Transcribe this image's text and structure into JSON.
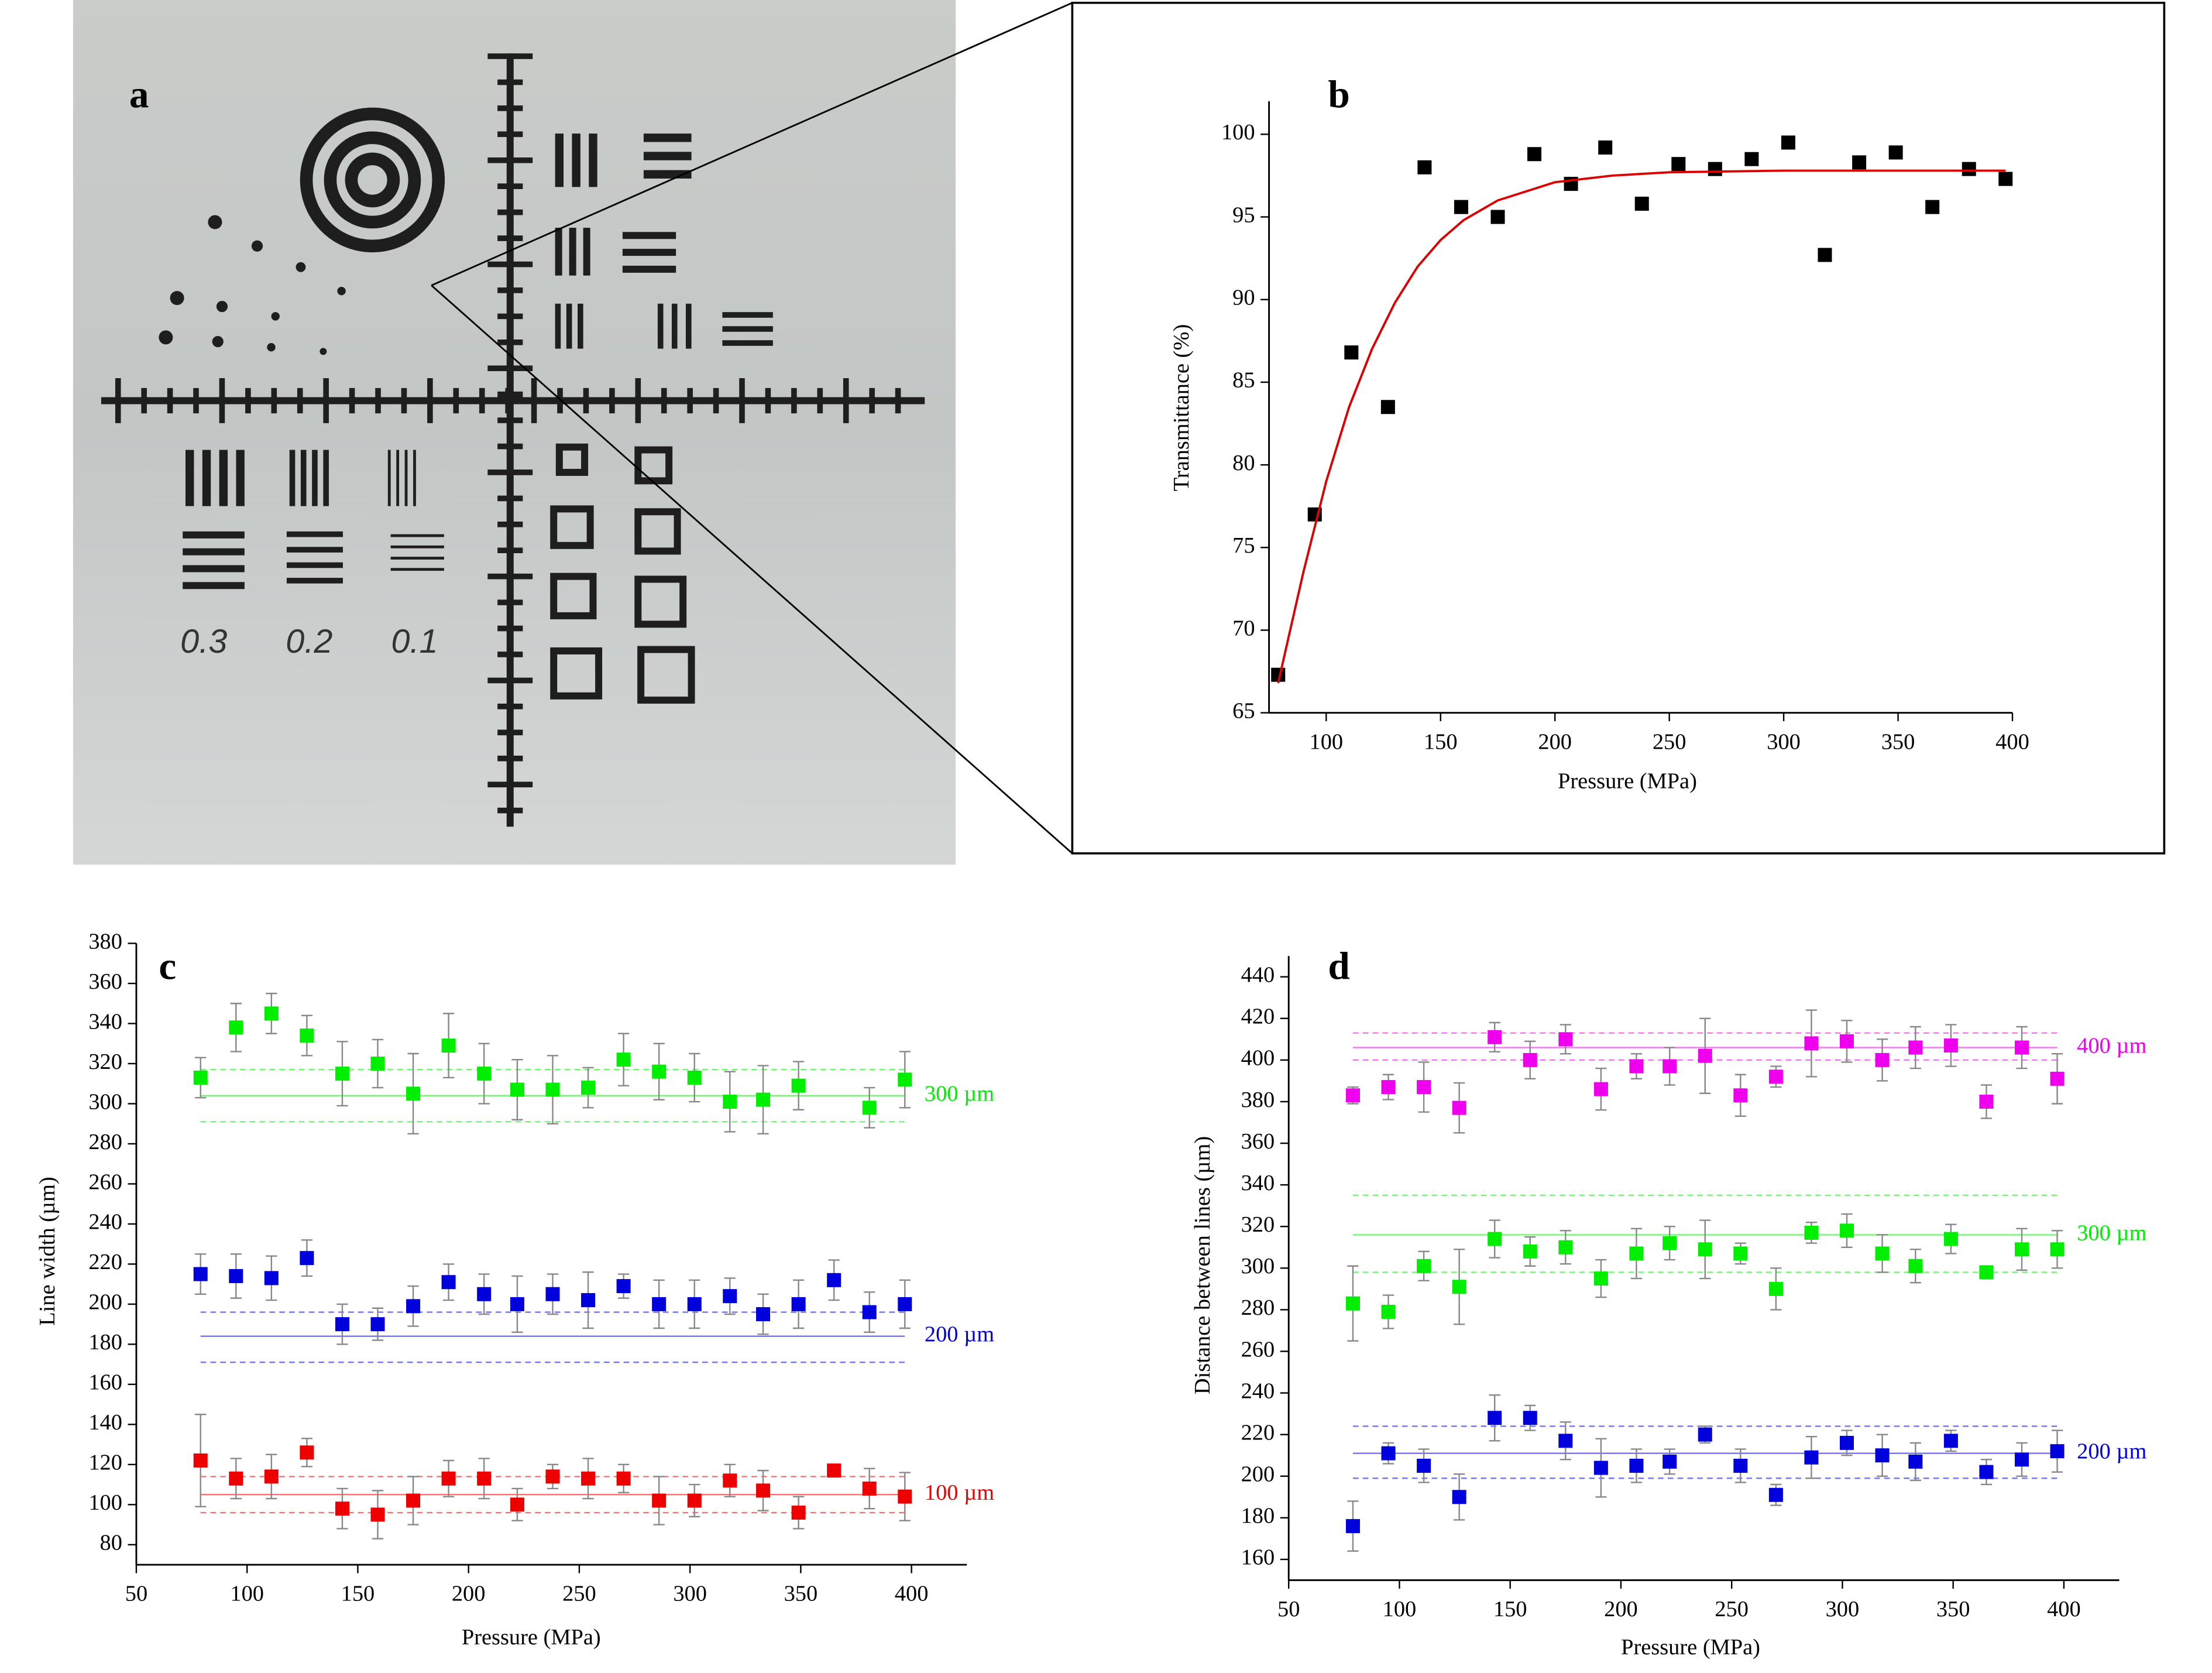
{
  "panel_a": {
    "label": "a",
    "scale_labels": [
      "0.3",
      "0.2",
      "0.1"
    ]
  },
  "chart_data": [
    {
      "type": "scatter",
      "label": "b",
      "x_label": "Pressure (MPa)",
      "y_label": "Transmittance (%)",
      "x": [
        79,
        95,
        111,
        127,
        143,
        159,
        175,
        191,
        207,
        222,
        238,
        254,
        270,
        286,
        302,
        318,
        333,
        349,
        365,
        381,
        397
      ],
      "xlim": [
        75,
        400
      ],
      "xticks": [
        100,
        150,
        200,
        250,
        300,
        350,
        400
      ],
      "ylim": [
        65,
        102
      ],
      "yticks": [
        65,
        70,
        75,
        80,
        85,
        90,
        95,
        100
      ],
      "series": [
        {
          "color": "#000000",
          "values": [
            67.3,
            77,
            86.8,
            83.5,
            98,
            95.6,
            95,
            98.8,
            97,
            99.2,
            95.8,
            98.2,
            97.9,
            98.5,
            99.5,
            92.7,
            98.3,
            98.9,
            95.6,
            97.9,
            97.3
          ]
        },
        {
          "color": "#dd0000",
          "line": true,
          "x": [
            79,
            90,
            100,
            110,
            120,
            130,
            140,
            150,
            160,
            175,
            200,
            225,
            250,
            300,
            397
          ],
          "values": [
            66.8,
            73.5,
            79,
            83.5,
            87,
            89.8,
            92,
            93.6,
            94.8,
            96,
            97.1,
            97.5,
            97.7,
            97.8,
            97.8
          ]
        }
      ]
    },
    {
      "type": "scatter",
      "label": "c",
      "x_label": "Pressure (MPa)",
      "y_label": "Line width (µm)",
      "x": [
        79,
        95,
        111,
        127,
        143,
        159,
        175,
        191,
        207,
        222,
        238,
        254,
        270,
        286,
        302,
        318,
        333,
        349,
        365,
        381,
        397
      ],
      "xlim": [
        50,
        425
      ],
      "xticks": [
        50,
        100,
        150,
        200,
        250,
        300,
        350,
        400
      ],
      "ylim": [
        70,
        380
      ],
      "yticks": [
        80,
        100,
        120,
        140,
        160,
        180,
        200,
        220,
        240,
        260,
        280,
        300,
        320,
        340,
        360,
        380
      ],
      "series": [
        {
          "name": "300 µm",
          "color": "#00ee00",
          "values": [
            313,
            338,
            345,
            334,
            315,
            320,
            305,
            329,
            315,
            307,
            307,
            308,
            322,
            316,
            313,
            301,
            302,
            309,
            null,
            298,
            312
          ],
          "errors": [
            10,
            12,
            10,
            10,
            16,
            12,
            20,
            16,
            15,
            15,
            17,
            10,
            13,
            14,
            12,
            15,
            17,
            12,
            null,
            10,
            14
          ],
          "mean": 304,
          "band": [
            291,
            317
          ]
        },
        {
          "name": "200 µm",
          "color": "#0000dd",
          "values": [
            215,
            214,
            213,
            223,
            190,
            190,
            199,
            211,
            205,
            200,
            205,
            202,
            209,
            200,
            200,
            204,
            195,
            200,
            212,
            196,
            200
          ],
          "errors": [
            10,
            11,
            11,
            9,
            10,
            8,
            10,
            9,
            10,
            14,
            10,
            14,
            6,
            12,
            12,
            9,
            10,
            12,
            10,
            10,
            12
          ],
          "mean": 184,
          "band": [
            171,
            196
          ]
        },
        {
          "name": "100 µm",
          "color": "#ee0000",
          "values": [
            122,
            113,
            114,
            126,
            98,
            95,
            102,
            113,
            113,
            100,
            114,
            113,
            113,
            102,
            102,
            112,
            107,
            96,
            117,
            108,
            104
          ],
          "errors": [
            23,
            10,
            11,
            7,
            10,
            12,
            12,
            9,
            10,
            8,
            6,
            10,
            7,
            12,
            8,
            8,
            10,
            8,
            3,
            10,
            12
          ],
          "mean": 105,
          "band": [
            96,
            114
          ]
        }
      ]
    },
    {
      "type": "scatter",
      "label": "d",
      "x_label": "Pressure (MPa)",
      "y_label": "Distance between lines (µm)",
      "x": [
        79,
        95,
        111,
        127,
        143,
        159,
        175,
        191,
        207,
        222,
        238,
        254,
        270,
        286,
        302,
        318,
        333,
        349,
        365,
        381,
        397
      ],
      "xlim": [
        50,
        425
      ],
      "xticks": [
        50,
        100,
        150,
        200,
        250,
        300,
        350,
        400
      ],
      "ylim": [
        150,
        450
      ],
      "yticks": [
        160,
        180,
        200,
        220,
        240,
        260,
        280,
        300,
        320,
        340,
        360,
        380,
        400,
        420,
        440
      ],
      "series": [
        {
          "name": "400 µm",
          "color": "#ee00ee",
          "values": [
            383,
            387,
            387,
            377,
            411,
            400,
            410,
            386,
            397,
            397,
            402,
            383,
            392,
            408,
            409,
            400,
            406,
            407,
            380,
            406,
            391
          ],
          "errors": [
            4,
            6,
            12,
            12,
            7,
            9,
            7,
            10,
            6,
            9,
            18,
            10,
            5,
            16,
            10,
            10,
            10,
            10,
            8,
            10,
            12
          ],
          "mean": 406,
          "band": [
            400,
            413
          ]
        },
        {
          "name": "300 µm",
          "color": "#00ee00",
          "values": [
            283,
            279,
            301,
            291,
            314,
            308,
            310,
            295,
            307,
            312,
            309,
            307,
            290,
            317,
            318,
            307,
            301,
            314,
            298,
            309,
            309
          ],
          "errors": [
            18,
            8,
            7,
            18,
            9,
            7,
            8,
            9,
            12,
            8,
            14,
            5,
            10,
            5,
            8,
            9,
            8,
            7,
            3,
            10,
            9
          ],
          "mean": 316,
          "band": [
            298,
            335
          ]
        },
        {
          "name": "200 µm",
          "color": "#0000dd",
          "values": [
            176,
            211,
            205,
            190,
            228,
            228,
            217,
            204,
            205,
            207,
            220,
            205,
            191,
            209,
            216,
            210,
            207,
            217,
            202,
            208,
            212
          ],
          "errors": [
            12,
            5,
            8,
            11,
            11,
            6,
            9,
            14,
            8,
            6,
            4,
            8,
            5,
            10,
            6,
            10,
            9,
            5,
            6,
            8,
            10
          ],
          "mean": 211,
          "band": [
            199,
            224
          ]
        }
      ]
    }
  ]
}
